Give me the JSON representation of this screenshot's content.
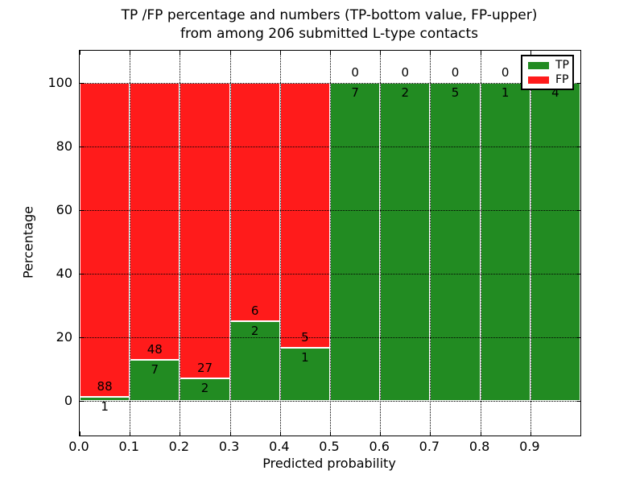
{
  "chart_data": {
    "type": "bar",
    "stacked": true,
    "title_line1": "TP /FP percentage and numbers (TP-bottom value, FP-upper)",
    "title_line2": "from among 206 submitted L-type contacts",
    "xlabel": "Predicted probability",
    "ylabel": "Percentage",
    "total_contacts": 206,
    "xlim": [
      0.0,
      1.0
    ],
    "ylim": [
      -11,
      110
    ],
    "x_tick_labels": [
      "0.0",
      "0.1",
      "0.2",
      "0.3",
      "0.4",
      "0.5",
      "0.6",
      "0.7",
      "0.8",
      "0.9"
    ],
    "y_tick_values": [
      0,
      20,
      40,
      60,
      80,
      100
    ],
    "y_tick_labels": [
      "0",
      "20",
      "40",
      "60",
      "80",
      "100"
    ],
    "legend": {
      "position": "upper right",
      "entries": [
        {
          "label": "TP",
          "color": "#228b22"
        },
        {
          "label": "FP",
          "color": "#ff1b1b"
        }
      ]
    },
    "colors": {
      "tp": "#228b22",
      "fp": "#ff1b1b",
      "bar_edge": "#ffffff",
      "grid": "#000000",
      "background": "#ffffff",
      "text": "#000000"
    },
    "bins": [
      {
        "x_start": 0.0,
        "x_end": 0.1,
        "tp": 1,
        "fp": 88,
        "tp_pct": 1.12
      },
      {
        "x_start": 0.1,
        "x_end": 0.2,
        "tp": 7,
        "fp": 48,
        "tp_pct": 12.73
      },
      {
        "x_start": 0.2,
        "x_end": 0.3,
        "tp": 2,
        "fp": 27,
        "tp_pct": 6.9
      },
      {
        "x_start": 0.3,
        "x_end": 0.4,
        "tp": 2,
        "fp": 6,
        "tp_pct": 25.0
      },
      {
        "x_start": 0.4,
        "x_end": 0.5,
        "tp": 1,
        "fp": 5,
        "tp_pct": 16.67
      },
      {
        "x_start": 0.5,
        "x_end": 0.6,
        "tp": 7,
        "fp": 0,
        "tp_pct": 100.0
      },
      {
        "x_start": 0.6,
        "x_end": 0.7,
        "tp": 2,
        "fp": 0,
        "tp_pct": 100.0
      },
      {
        "x_start": 0.7,
        "x_end": 0.8,
        "tp": 5,
        "fp": 0,
        "tp_pct": 100.0
      },
      {
        "x_start": 0.8,
        "x_end": 0.9,
        "tp": 1,
        "fp": 0,
        "tp_pct": 100.0
      },
      {
        "x_start": 0.9,
        "x_end": 1.0,
        "tp": 4,
        "fp": 0,
        "tp_pct": 100.0
      }
    ]
  }
}
